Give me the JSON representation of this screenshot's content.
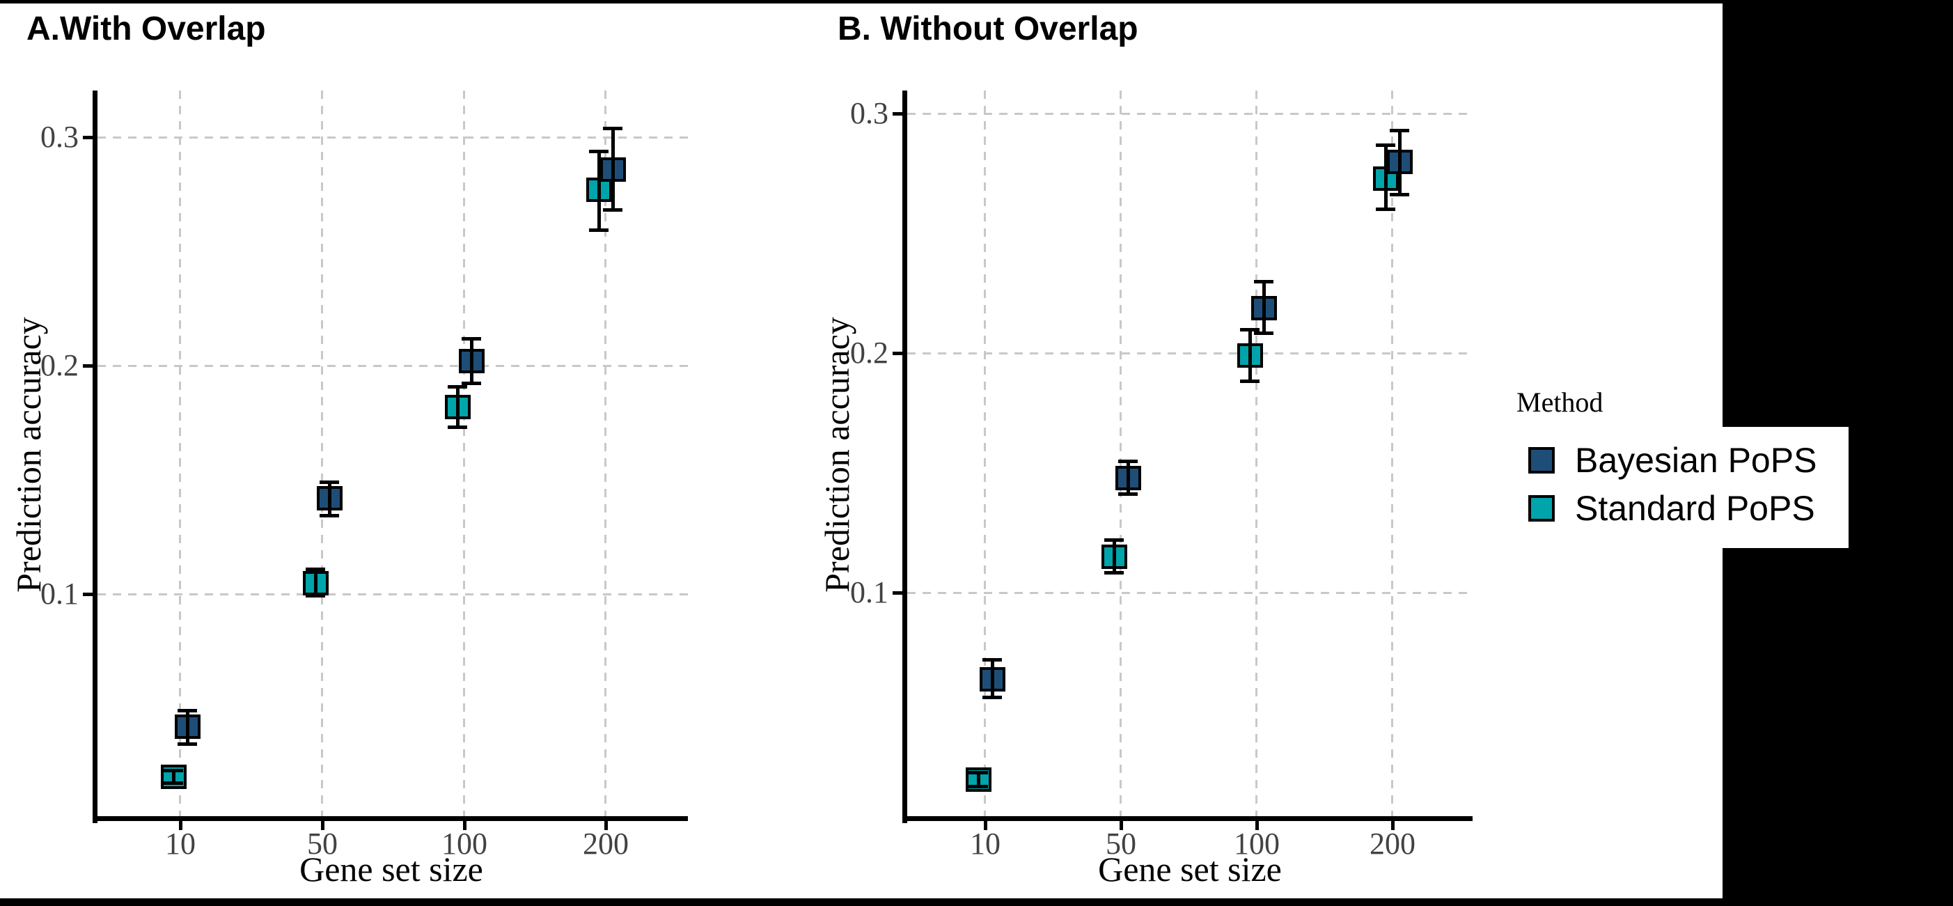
{
  "background": {
    "canvas": "#000000",
    "figure": "#ffffff"
  },
  "legend": {
    "title": "Method",
    "position": "right",
    "items": [
      {
        "label": "Bayesian PoPS",
        "color": "#1e4e78"
      },
      {
        "label": "Standard PoPS",
        "color": "#00a4ab"
      }
    ]
  },
  "chart_data": [
    {
      "type": "scatter",
      "panel_label": "A.With Overlap",
      "xlabel": "Gene set size",
      "ylabel": "Prediction accuracy",
      "x_categories": [
        10,
        50,
        100,
        200
      ],
      "x_tick_labels": [
        "10",
        "50",
        "100",
        "200"
      ],
      "y_tick_values": [
        0.1,
        0.2,
        0.3
      ],
      "y_tick_labels": [
        "0.1",
        "0.2",
        "0.3"
      ],
      "ylim": [
        0,
        0.32
      ],
      "grid": "dashed-major",
      "marker": "square-with-error-bars",
      "series": [
        {
          "name": "Bayesian PoPS",
          "color": "#1e4e78",
          "means": [
            0.042,
            0.142,
            0.202,
            0.286
          ],
          "ci_lower": [
            0.034,
            0.134,
            0.192,
            0.268
          ],
          "ci_upper": [
            0.049,
            0.149,
            0.212,
            0.304
          ]
        },
        {
          "name": "Standard PoPS",
          "color": "#00a4ab",
          "means": [
            0.02,
            0.105,
            0.182,
            0.277
          ],
          "ci_lower": [
            0.017,
            0.099,
            0.173,
            0.259
          ],
          "ci_upper": [
            0.023,
            0.111,
            0.191,
            0.294
          ]
        }
      ]
    },
    {
      "type": "scatter",
      "panel_label": "B. Without Overlap",
      "xlabel": "Gene set size",
      "ylabel": "Prediction accuracy",
      "x_categories": [
        10,
        50,
        100,
        200
      ],
      "x_tick_labels": [
        "10",
        "50",
        "100",
        "200"
      ],
      "y_tick_values": [
        0.1,
        0.2,
        0.3
      ],
      "y_tick_labels": [
        "0.1",
        "0.2",
        "0.3"
      ],
      "ylim": [
        0,
        0.32
      ],
      "grid": "dashed-major",
      "marker": "square-with-error-bars",
      "series": [
        {
          "name": "Bayesian PoPS",
          "color": "#1e4e78",
          "means": [
            0.064,
            0.148,
            0.219,
            0.28
          ],
          "ci_lower": [
            0.056,
            0.141,
            0.208,
            0.266
          ],
          "ci_upper": [
            0.072,
            0.155,
            0.23,
            0.293
          ]
        },
        {
          "name": "Standard PoPS",
          "color": "#00a4ab",
          "means": [
            0.022,
            0.115,
            0.199,
            0.273
          ],
          "ci_lower": [
            0.019,
            0.108,
            0.188,
            0.26
          ],
          "ci_upper": [
            0.025,
            0.122,
            0.21,
            0.287
          ]
        }
      ]
    }
  ]
}
